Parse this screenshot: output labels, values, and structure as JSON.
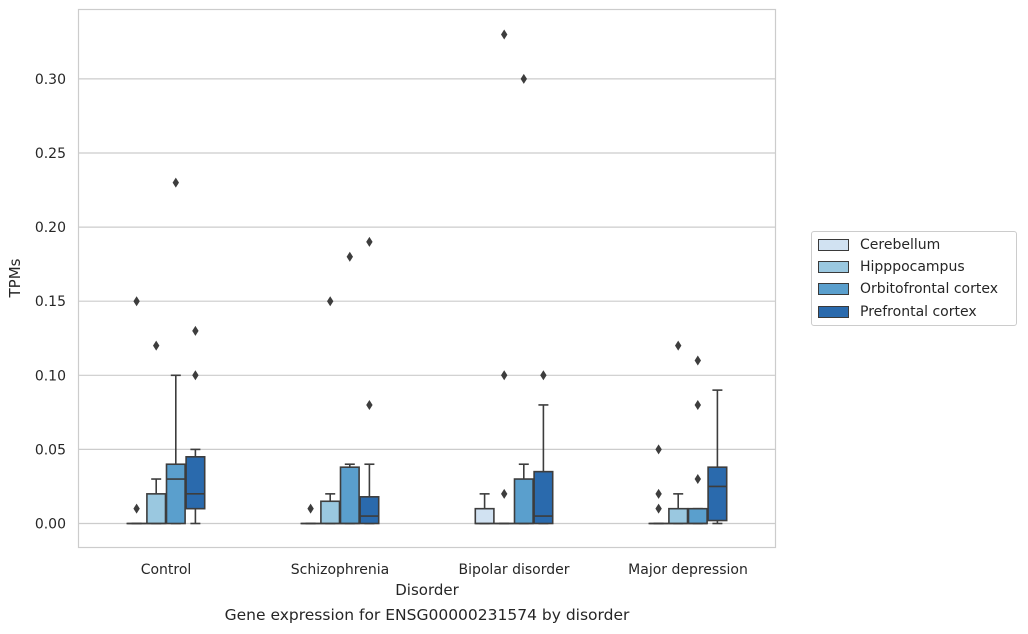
{
  "chart_data": {
    "type": "box",
    "title": "Gene expression for ENSG00000231574 by disorder",
    "xlabel": "Disorder",
    "ylabel": "TPMs",
    "ylim": [
      -0.016,
      0.346
    ],
    "yticks": [
      "0.00",
      "0.05",
      "0.10",
      "0.15",
      "0.20",
      "0.25",
      "0.30"
    ],
    "grid": "horizontal",
    "legend_position": "right",
    "categories": [
      "Control",
      "Schizophrenia",
      "Bipolar disorder",
      "Major depression"
    ],
    "series": [
      {
        "name": "Cerebellum",
        "color": "#d1e2f2",
        "boxes": [
          {
            "q1": 0.0,
            "median": 0.0,
            "q3": 0.0,
            "whisker_low": 0.0,
            "whisker_high": 0.0,
            "outliers": [
              0.15,
              0.01
            ]
          },
          {
            "q1": 0.0,
            "median": 0.0,
            "q3": 0.0,
            "whisker_low": 0.0,
            "whisker_high": 0.0,
            "outliers": [
              0.01
            ]
          },
          {
            "q1": 0.0,
            "median": 0.0,
            "q3": 0.01,
            "whisker_low": 0.0,
            "whisker_high": 0.02,
            "outliers": []
          },
          {
            "q1": 0.0,
            "median": 0.0,
            "q3": 0.0,
            "whisker_low": 0.0,
            "whisker_high": 0.0,
            "outliers": [
              0.05,
              0.02,
              0.01
            ]
          }
        ]
      },
      {
        "name": "Hipppocampus",
        "color": "#9ac8e0",
        "boxes": [
          {
            "q1": 0.0,
            "median": 0.0,
            "q3": 0.02,
            "whisker_low": 0.0,
            "whisker_high": 0.03,
            "outliers": [
              0.12
            ]
          },
          {
            "q1": 0.0,
            "median": 0.0,
            "q3": 0.015,
            "whisker_low": 0.0,
            "whisker_high": 0.02,
            "outliers": [
              0.15
            ]
          },
          {
            "q1": 0.0,
            "median": 0.0,
            "q3": 0.0,
            "whisker_low": 0.0,
            "whisker_high": 0.0,
            "outliers": [
              0.33,
              0.1,
              0.02
            ]
          },
          {
            "q1": 0.0,
            "median": 0.0,
            "q3": 0.01,
            "whisker_low": 0.0,
            "whisker_high": 0.02,
            "outliers": [
              0.12
            ]
          }
        ]
      },
      {
        "name": "Orbitofrontal cortex",
        "color": "#5a9fcd",
        "boxes": [
          {
            "q1": 0.0,
            "median": 0.03,
            "q3": 0.04,
            "whisker_low": 0.0,
            "whisker_high": 0.1,
            "outliers": [
              0.23
            ]
          },
          {
            "q1": 0.0,
            "median": 0.0,
            "q3": 0.038,
            "whisker_low": 0.0,
            "whisker_high": 0.04,
            "outliers": [
              0.18
            ]
          },
          {
            "q1": 0.0,
            "median": 0.0,
            "q3": 0.03,
            "whisker_low": 0.0,
            "whisker_high": 0.04,
            "outliers": [
              0.3
            ]
          },
          {
            "q1": 0.0,
            "median": 0.0,
            "q3": 0.01,
            "whisker_low": 0.0,
            "whisker_high": 0.01,
            "outliers": [
              0.11,
              0.08,
              0.03
            ]
          }
        ]
      },
      {
        "name": "Prefrontal cortex",
        "color": "#2a6aad",
        "boxes": [
          {
            "q1": 0.01,
            "median": 0.02,
            "q3": 0.045,
            "whisker_low": 0.0,
            "whisker_high": 0.05,
            "outliers": [
              0.13,
              0.1
            ]
          },
          {
            "q1": 0.0,
            "median": 0.005,
            "q3": 0.018,
            "whisker_low": 0.0,
            "whisker_high": 0.04,
            "outliers": [
              0.19,
              0.08
            ]
          },
          {
            "q1": 0.0,
            "median": 0.005,
            "q3": 0.035,
            "whisker_low": 0.0,
            "whisker_high": 0.08,
            "outliers": [
              0.1
            ]
          },
          {
            "q1": 0.002,
            "median": 0.025,
            "q3": 0.038,
            "whisker_low": 0.0,
            "whisker_high": 0.09,
            "outliers": []
          }
        ]
      }
    ]
  }
}
